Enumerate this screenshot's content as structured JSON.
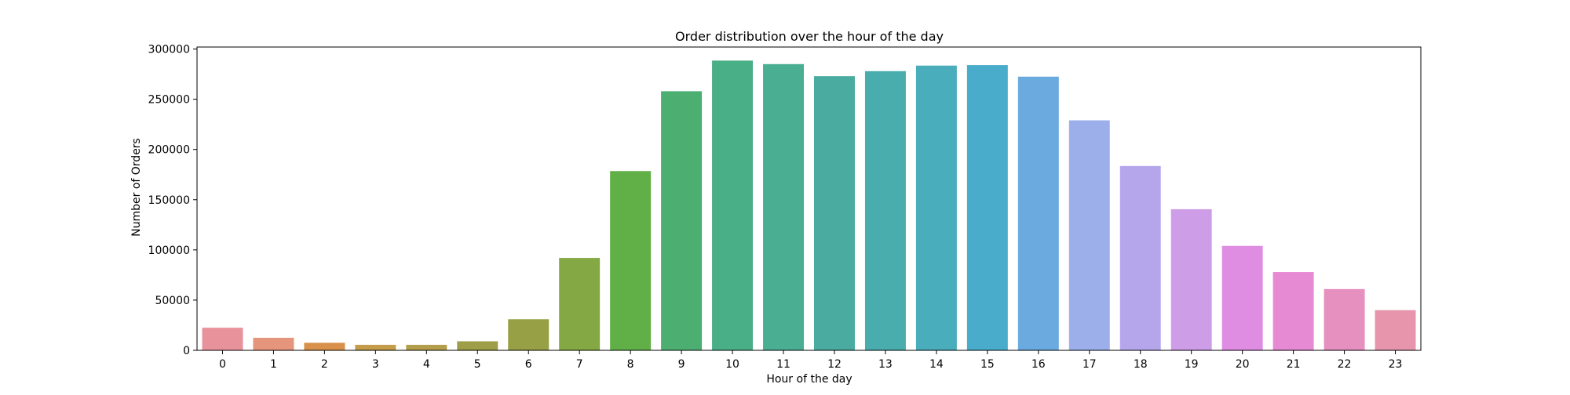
{
  "chart_data": {
    "type": "bar",
    "title": "Order distribution over the hour of the day",
    "xlabel": "Hour of the day",
    "ylabel": "Number of Orders",
    "categories": [
      "0",
      "1",
      "2",
      "3",
      "4",
      "5",
      "6",
      "7",
      "8",
      "9",
      "10",
      "11",
      "12",
      "13",
      "14",
      "15",
      "16",
      "17",
      "18",
      "19",
      "20",
      "21",
      "22",
      "23"
    ],
    "values": [
      22500,
      12500,
      7500,
      5500,
      5500,
      9000,
      31000,
      92000,
      178500,
      258000,
      288500,
      285000,
      273000,
      278000,
      283500,
      284000,
      272500,
      229000,
      183500,
      140500,
      104000,
      78000,
      61000,
      40000
    ],
    "ylim": [
      0,
      302000
    ],
    "yticks": [
      0,
      50000,
      100000,
      150000,
      200000,
      250000,
      300000
    ],
    "colors": [
      "#e8929b",
      "#e6957d",
      "#d8904a",
      "#c49c4a",
      "#b49e4a",
      "#9e9e48",
      "#97a045",
      "#84a843",
      "#61af47",
      "#4caf71",
      "#49af87",
      "#4aae93",
      "#4aaba0",
      "#4aadad",
      "#4aadbb",
      "#4aaccb",
      "#6aaadf",
      "#9dafea",
      "#b5a6ec",
      "#cd9de8",
      "#df8de3",
      "#e68ad3",
      "#e690bf",
      "#e695ad"
    ],
    "grid": false,
    "legend": "none"
  }
}
